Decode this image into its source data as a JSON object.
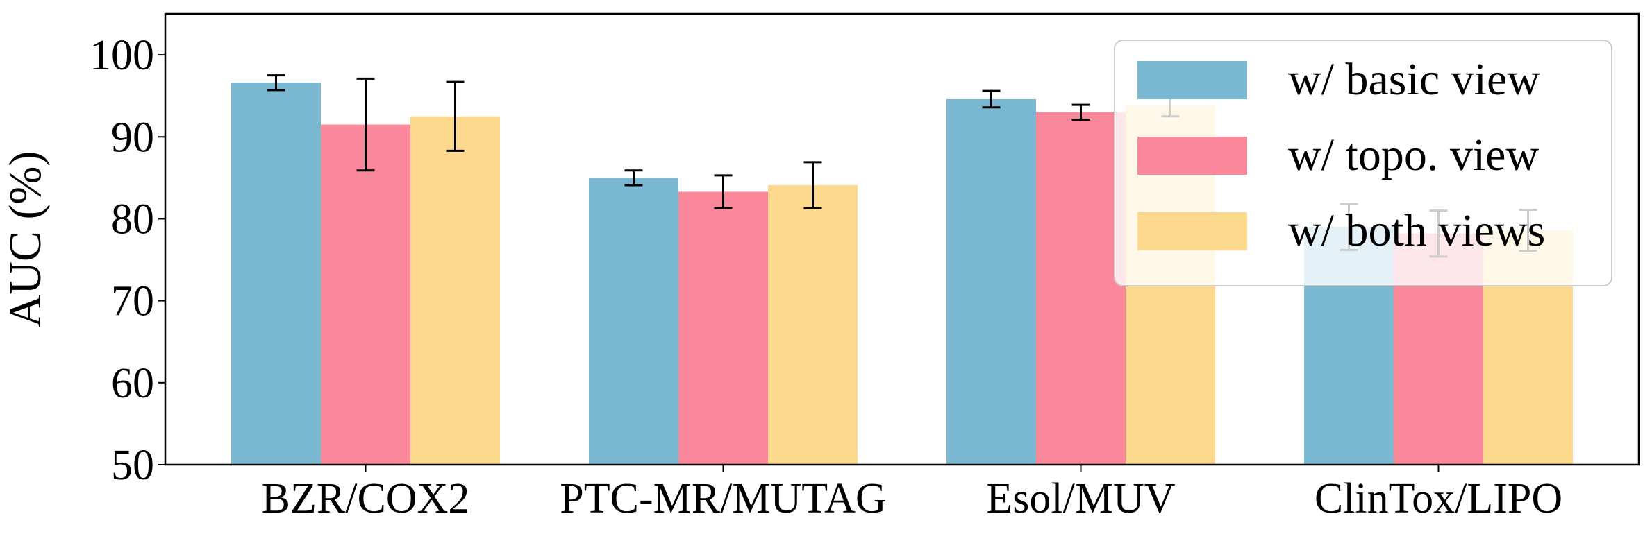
{
  "chart_data": {
    "type": "bar",
    "title": "",
    "xlabel": "",
    "ylabel": "AUC (%)",
    "ylim": [
      50,
      105
    ],
    "yticks": [
      50,
      60,
      70,
      80,
      90,
      100
    ],
    "categories": [
      "BZR/COX2",
      "PTC-MR/MUTAG",
      "Esol/MUV",
      "ClinTox/LIPO"
    ],
    "series": [
      {
        "name": "w/ basic view",
        "color": "#7bb9d3",
        "values": [
          96.6,
          85.0,
          94.6,
          79.0
        ],
        "errors": [
          0.9,
          0.9,
          1.0,
          2.8
        ]
      },
      {
        "name": "w/ topo. view",
        "color": "#fb889a",
        "values": [
          91.5,
          83.3,
          93.0,
          78.2
        ],
        "errors": [
          5.6,
          2.0,
          0.9,
          2.8
        ]
      },
      {
        "name": "w/ both views",
        "color": "#fcd98d",
        "values": [
          92.5,
          84.1,
          93.8,
          78.6
        ],
        "errors": [
          4.2,
          2.8,
          1.3,
          2.5
        ]
      }
    ],
    "legend_position": "top-right",
    "grid": false
  }
}
